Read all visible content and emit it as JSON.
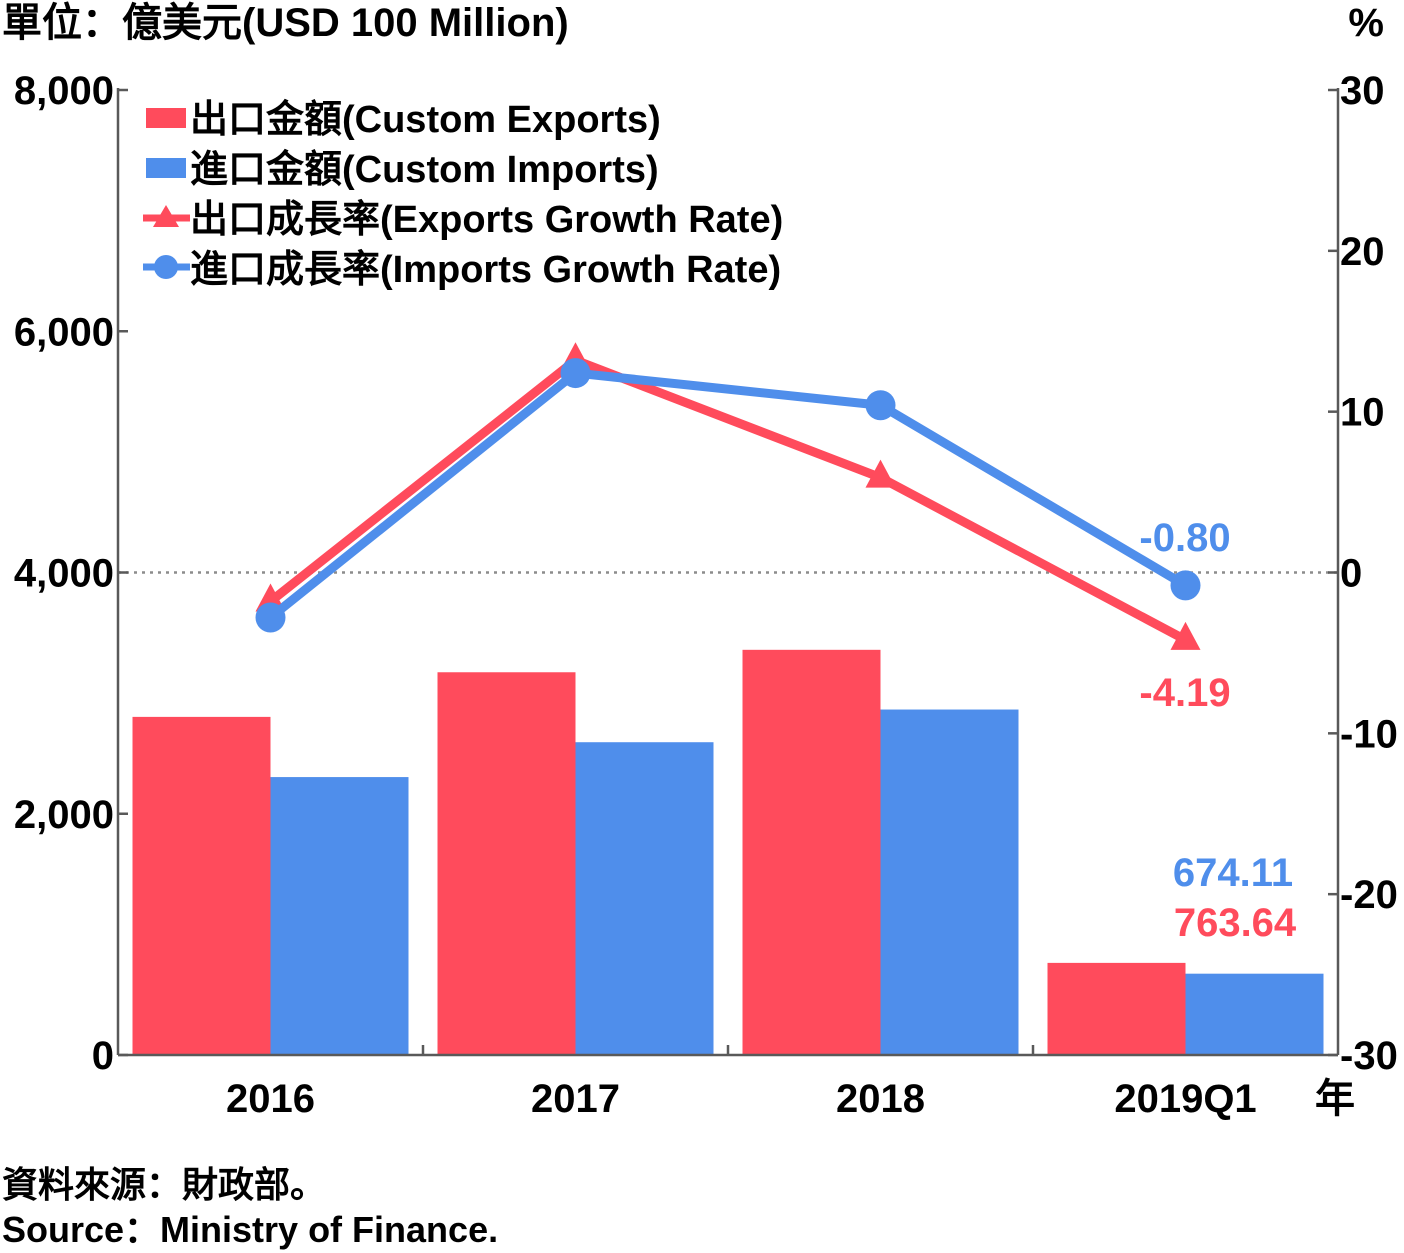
{
  "header": {
    "left_unit": "單位：億美元(USD 100 Million)",
    "right_unit": "%",
    "x_suffix": "年"
  },
  "footer": {
    "source_zh": "資料來源：財政部。",
    "source_en": "Source：Ministry of Finance."
  },
  "colors": {
    "exports": "#ff4b5c",
    "imports": "#4f8eeb",
    "axis": "#595959",
    "zero_line": "#8c8c8c"
  },
  "chart_data": {
    "type": "bar",
    "categories": [
      "2016",
      "2017",
      "2018",
      "2019Q1"
    ],
    "y_left": {
      "ylim": [
        0,
        8000
      ],
      "ticks": [
        0,
        2000,
        4000,
        6000,
        8000
      ],
      "tick_labels": [
        "0",
        "2,000",
        "4,000",
        "6,000",
        "8,000"
      ]
    },
    "y_right": {
      "ylim": [
        -30,
        30
      ],
      "ticks": [
        -30,
        -20,
        -10,
        0,
        10,
        20,
        30
      ],
      "tick_labels": [
        "-30",
        "-20",
        "-10",
        "0",
        "10",
        "20",
        "30"
      ]
    },
    "series": [
      {
        "name": "出口金額(Custom Exports)",
        "kind": "bar",
        "axis": "left",
        "color": "#ff4b5c",
        "values": [
          2803,
          3173,
          3359,
          763.64
        ]
      },
      {
        "name": "進口金額(Custom Imports)",
        "kind": "bar",
        "axis": "left",
        "color": "#4f8eeb",
        "values": [
          2304,
          2593,
          2864,
          674.11
        ]
      },
      {
        "name": "出口成長率(Exports Growth Rate)",
        "kind": "line",
        "marker": "triangle",
        "axis": "right",
        "color": "#ff4b5c",
        "values": [
          -1.8,
          13.2,
          5.9,
          -4.19
        ]
      },
      {
        "name": "進口成長率(Imports Growth Rate)",
        "kind": "line",
        "marker": "circle",
        "axis": "right",
        "color": "#4f8eeb",
        "values": [
          -2.8,
          12.4,
          10.4,
          -0.8
        ]
      }
    ],
    "data_labels": {
      "imports_growth_last": "-0.80",
      "exports_growth_last": "-4.19",
      "imports_last": "674.11",
      "exports_last": "763.64"
    },
    "zero_reference_line": "dotted",
    "legend_position": "top-left"
  }
}
